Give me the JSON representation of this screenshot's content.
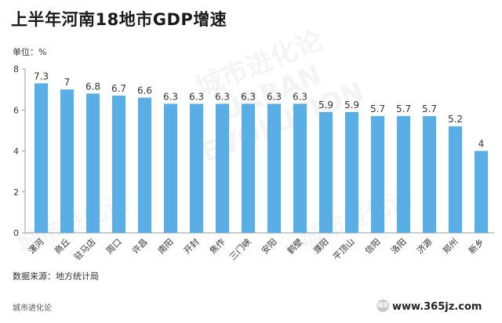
{
  "header": {
    "title": "上半年河南18地市GDP增速"
  },
  "unit_label": "单位：%",
  "source_label": "数据来源：地方统计局",
  "footer": {
    "brand": "城市进化论",
    "watermark": "www.365jz.com"
  },
  "colors": {
    "bar": "#5aaee6",
    "axis": "#999999",
    "text": "#333333"
  },
  "chart_data": {
    "type": "bar",
    "title": "上半年河南18地市GDP增速",
    "ylabel": "单位：%",
    "xlabel": "",
    "ylim": [
      0,
      8
    ],
    "yticks": [
      0,
      2,
      4,
      6,
      8
    ],
    "grid": false,
    "categories": [
      "漯河",
      "商丘",
      "驻马店",
      "周口",
      "许昌",
      "南阳",
      "开封",
      "焦作",
      "三门峡",
      "安阳",
      "鹤壁",
      "濮阳",
      "平顶山",
      "信阳",
      "洛阳",
      "济源",
      "郑州",
      "新乡"
    ],
    "values": [
      7.3,
      7,
      6.8,
      6.7,
      6.6,
      6.3,
      6.3,
      6.3,
      6.3,
      6.3,
      6.3,
      5.9,
      5.9,
      5.7,
      5.7,
      5.7,
      5.2,
      4
    ],
    "value_labels": [
      "7.3",
      "7",
      "6.8",
      "6.7",
      "6.6",
      "6.3",
      "6.3",
      "6.3",
      "6.3",
      "6.3",
      "6.3",
      "5.9",
      "5.9",
      "5.7",
      "5.7",
      "5.7",
      "5.2",
      "4"
    ]
  }
}
